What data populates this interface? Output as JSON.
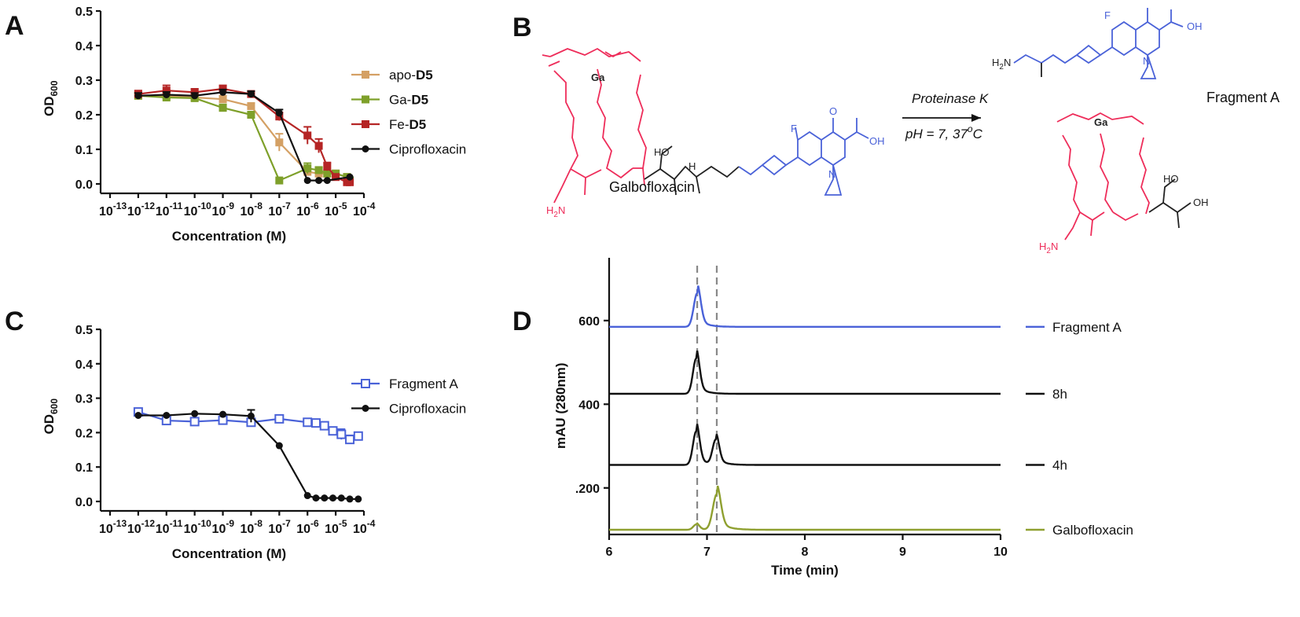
{
  "panels": {
    "a": "A",
    "b": "B",
    "c": "C",
    "d": "D"
  },
  "chart_data": [
    {
      "id": "A",
      "type": "line",
      "xscale": "log",
      "xlabel": "Concentration (M)",
      "ylabel_main": "OD",
      "ylabel_sub": "600",
      "xlim_exp": [
        -13,
        -4
      ],
      "xticks_exp": [
        "-13",
        "-12",
        "-11",
        "-10",
        "-9",
        "-8",
        "-7",
        "-6",
        "-5",
        "-4"
      ],
      "ylim": [
        0,
        0.5
      ],
      "yticks": [
        "0.0",
        "0.1",
        "0.2",
        "0.3",
        "0.4",
        "0.5"
      ],
      "legend_position": "right",
      "series": [
        {
          "label_pre": "apo-",
          "label_bold": "D5",
          "color": "#d4a064",
          "marker": "square",
          "x": [
            -12,
            -11,
            -10,
            -9,
            -8,
            -7,
            -6,
            -5.6,
            -5.3,
            -5,
            -4.6,
            -4.5
          ],
          "y": [
            0.255,
            0.255,
            0.25,
            0.245,
            0.225,
            0.12,
            0.035,
            0.03,
            0.03,
            0.03,
            0.02,
            0.01
          ],
          "err": [
            0.01,
            0.01,
            0.01,
            0.01,
            0.008,
            0.025,
            0.01,
            0.006,
            0.006,
            0.006,
            0.005,
            0.005
          ]
        },
        {
          "label_pre": "Ga-",
          "label_bold": "D5",
          "color": "#7ea02a",
          "marker": "square",
          "x": [
            -12,
            -11,
            -10,
            -9,
            -8,
            -7,
            -6,
            -5.6,
            -5.3,
            -5,
            -4.6,
            -4.5
          ],
          "y": [
            0.255,
            0.25,
            0.248,
            0.22,
            0.2,
            0.01,
            0.045,
            0.04,
            0.03,
            0.03,
            0.02,
            0.01
          ],
          "err": [
            0.008,
            0.008,
            0.008,
            0.01,
            0.008,
            0.005,
            0.015,
            0.008,
            0.006,
            0.006,
            0.005,
            0.005
          ]
        },
        {
          "label_pre": "Fe-",
          "label_bold": "D5",
          "color": "#b52525",
          "marker": "square",
          "x": [
            -12,
            -11,
            -10,
            -9,
            -8,
            -7,
            -6,
            -5.6,
            -5.3,
            -5,
            -4.6,
            -4.5
          ],
          "y": [
            0.26,
            0.27,
            0.265,
            0.275,
            0.26,
            0.195,
            0.14,
            0.11,
            0.05,
            0.02,
            0.005,
            0.005
          ],
          "err": [
            0.01,
            0.015,
            0.01,
            0.01,
            0.008,
            0.012,
            0.025,
            0.02,
            0.012,
            0.008,
            0.005,
            0.005
          ]
        },
        {
          "label_pre": "Ciprofloxacin",
          "label_bold": "",
          "color": "#111111",
          "marker": "circle",
          "x": [
            -12,
            -11,
            -10,
            -9,
            -8,
            -7,
            -6,
            -5.6,
            -5.3,
            -4.5
          ],
          "y": [
            0.255,
            0.258,
            0.255,
            0.265,
            0.26,
            0.205,
            0.01,
            0.01,
            0.01,
            0.02
          ],
          "err": [
            0.008,
            0.008,
            0.008,
            0.008,
            0.008,
            0.01,
            0.004,
            0.004,
            0.004,
            0.004
          ]
        }
      ]
    },
    {
      "id": "C",
      "type": "line",
      "xscale": "log",
      "xlabel": "Concentration (M)",
      "ylabel_main": "OD",
      "ylabel_sub": "600",
      "xlim_exp": [
        -13,
        -4
      ],
      "xticks_exp": [
        "-13",
        "-12",
        "-11",
        "-10",
        "-9",
        "-8",
        "-7",
        "-6",
        "-5",
        "-4"
      ],
      "ylim": [
        0,
        0.5
      ],
      "yticks": [
        "0.0",
        "0.1",
        "0.2",
        "0.3",
        "0.4",
        "0.5"
      ],
      "legend_position": "right",
      "series": [
        {
          "label_pre": "Fragment  A",
          "label_bold": "",
          "color": "#4a62d8",
          "marker": "open-square",
          "x": [
            -12,
            -11,
            -10,
            -9,
            -8,
            -7,
            -6,
            -5.7,
            -5.4,
            -5.1,
            -4.8,
            -4.5,
            -4.2
          ],
          "y": [
            0.26,
            0.235,
            0.232,
            0.236,
            0.23,
            0.24,
            0.23,
            0.228,
            0.22,
            0.205,
            0.195,
            0.18,
            0.19
          ],
          "err": [
            0.006,
            0.006,
            0.006,
            0.006,
            0.01,
            0.006,
            0.006,
            0.006,
            0.008,
            0.01,
            0.015,
            0.012,
            0.008
          ]
        },
        {
          "label_pre": "Ciprofloxacin",
          "label_bold": "",
          "color": "#111111",
          "marker": "circle",
          "x": [
            -12,
            -11,
            -10,
            -9,
            -8,
            -7,
            -6,
            -5.7,
            -5.4,
            -5.1,
            -4.8,
            -4.5,
            -4.2
          ],
          "y": [
            0.25,
            0.25,
            0.255,
            0.253,
            0.248,
            0.162,
            0.017,
            0.01,
            0.01,
            0.01,
            0.01,
            0.007,
            0.007
          ],
          "err": [
            0.005,
            0.005,
            0.005,
            0.005,
            0.018,
            0.005,
            0.004,
            0.003,
            0.003,
            0.003,
            0.003,
            0.003,
            0.003
          ]
        }
      ]
    },
    {
      "id": "D",
      "type": "line",
      "xlabel": "Time (min)",
      "ylabel": "mAU (280nm)",
      "xlim": [
        6,
        10
      ],
      "xticks": [
        "6",
        "7",
        "8",
        "9",
        "10"
      ],
      "ylim": [
        100,
        750
      ],
      "yticks": [
        ".200",
        "400",
        "600"
      ],
      "dashed_lines_x": [
        6.9,
        7.1
      ],
      "legend_position": "right",
      "series": [
        {
          "name": "Fragment A",
          "color": "#4a62d8",
          "baseline": 585,
          "peaks": [
            {
              "x": 6.9,
              "h": 95,
              "w": 0.035
            }
          ]
        },
        {
          "name": "8h",
          "color": "#111111",
          "baseline": 425,
          "peaks": [
            {
              "x": 6.89,
              "h": 100,
              "w": 0.033
            }
          ]
        },
        {
          "name": "4h",
          "color": "#111111",
          "baseline": 255,
          "peaks": [
            {
              "x": 6.89,
              "h": 95,
              "w": 0.033
            },
            {
              "x": 7.09,
              "h": 70,
              "w": 0.033
            }
          ]
        },
        {
          "name": "Galbofloxacin",
          "color": "#8fa030",
          "baseline": 100,
          "peaks": [
            {
              "x": 6.89,
              "h": 15,
              "w": 0.03
            },
            {
              "x": 7.1,
              "h": 100,
              "w": 0.04
            }
          ]
        }
      ]
    }
  ],
  "scheme": {
    "reagent": "Proteinase K",
    "conditions": "pH = 7, 37",
    "conditions_sup": "o",
    "conditions_unit": "C",
    "reactant_label": "Galbofloxacin",
    "product_label": "Fragment  A",
    "atoms": {
      "ga": "Ga",
      "f": "F",
      "oh": "OH",
      "n": "N",
      "o": "O",
      "ho": "HO",
      "h2n": "H",
      "h2n_sub": "2",
      "h2n_n": "N",
      "h": "H"
    }
  }
}
